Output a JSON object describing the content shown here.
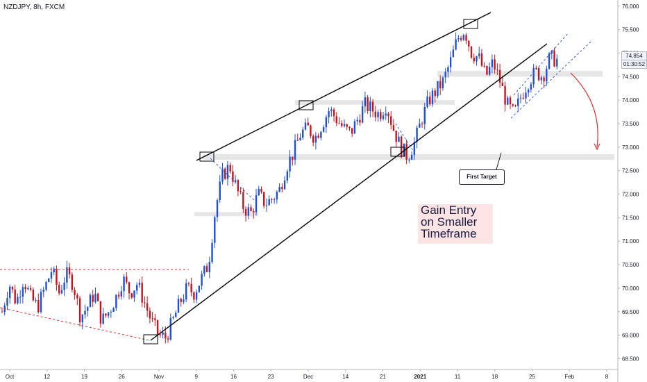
{
  "header": {
    "symbol": "NZDJPY, 8h, FXCM"
  },
  "price_label": {
    "value": "74.854",
    "timer": "01:30:52"
  },
  "annotations": {
    "note": [
      "Gain Entry",
      "on Smaller",
      "Timeframe"
    ],
    "callout": "First Target"
  },
  "colors": {
    "up": "#1e4fd6",
    "down": "#c2151f",
    "zone": "#e6e6e6",
    "note_bg": "#fce4e4",
    "arrow": "#d32f2f"
  },
  "chart_data": {
    "type": "candlestick",
    "ylim": [
      68.3,
      76.1
    ],
    "y_ticks": [
      68.5,
      69.0,
      69.5,
      70.0,
      70.5,
      71.0,
      71.5,
      72.0,
      72.5,
      73.0,
      73.5,
      74.0,
      74.5,
      75.0,
      75.5,
      76.0
    ],
    "y_tick_labels": [
      "68.500",
      "69.000",
      "69.500",
      "70.000",
      "70.500",
      "71.000",
      "71.500",
      "72.000",
      "72.500",
      "73.000",
      "73.500",
      "74.000",
      "74.500",
      "75.000",
      "75.500",
      "76.000"
    ],
    "x_ticks": [
      {
        "label": "Oct",
        "bold": false
      },
      {
        "label": "12",
        "bold": false
      },
      {
        "label": "19",
        "bold": false
      },
      {
        "label": "26",
        "bold": false
      },
      {
        "label": "Nov",
        "bold": false
      },
      {
        "label": "9",
        "bold": false
      },
      {
        "label": "16",
        "bold": false
      },
      {
        "label": "23",
        "bold": false
      },
      {
        "label": "Dec",
        "bold": false
      },
      {
        "label": "14",
        "bold": false
      },
      {
        "label": "21",
        "bold": false
      },
      {
        "label": "2021",
        "bold": true
      },
      {
        "label": "11",
        "bold": false
      },
      {
        "label": "18",
        "bold": false
      },
      {
        "label": "25",
        "bold": false
      },
      {
        "label": "Feb",
        "bold": false
      },
      {
        "label": "8",
        "bold": false
      }
    ],
    "close_path": [
      69.5,
      70.1,
      69.7,
      70.2,
      69.8,
      69.6,
      70.0,
      70.4,
      69.9,
      70.3,
      70.1,
      69.4,
      69.6,
      69.9,
      69.3,
      69.5,
      69.8,
      70.2,
      69.9,
      70.1,
      69.7,
      69.3,
      69.0,
      68.95,
      69.3,
      69.7,
      70.0,
      69.9,
      70.2,
      70.5,
      71.7,
      72.4,
      72.6,
      72.1,
      71.7,
      71.6,
      72.0,
      71.8,
      71.9,
      72.1,
      72.6,
      72.9,
      73.3,
      73.4,
      73.2,
      73.5,
      73.8,
      73.6,
      73.4,
      73.3,
      73.6,
      73.9,
      73.8,
      73.7,
      73.9,
      73.4,
      73.0,
      72.8,
      73.1,
      73.6,
      74.0,
      74.2,
      74.4,
      74.8,
      75.3,
      75.5,
      75.0,
      74.9,
      74.5,
      74.8,
      74.4,
      73.9,
      73.7,
      74.1,
      74.4,
      74.6,
      74.5,
      74.9,
      74.85
    ],
    "zones": [
      {
        "y": [
          71.55,
          71.62
        ]
      },
      {
        "y": [
          72.73,
          72.85
        ]
      },
      {
        "y": [
          73.9,
          74.0
        ]
      },
      {
        "y": [
          74.5,
          74.62
        ]
      },
      {
        "y": [
          72.75,
          72.85
        ]
      }
    ]
  }
}
